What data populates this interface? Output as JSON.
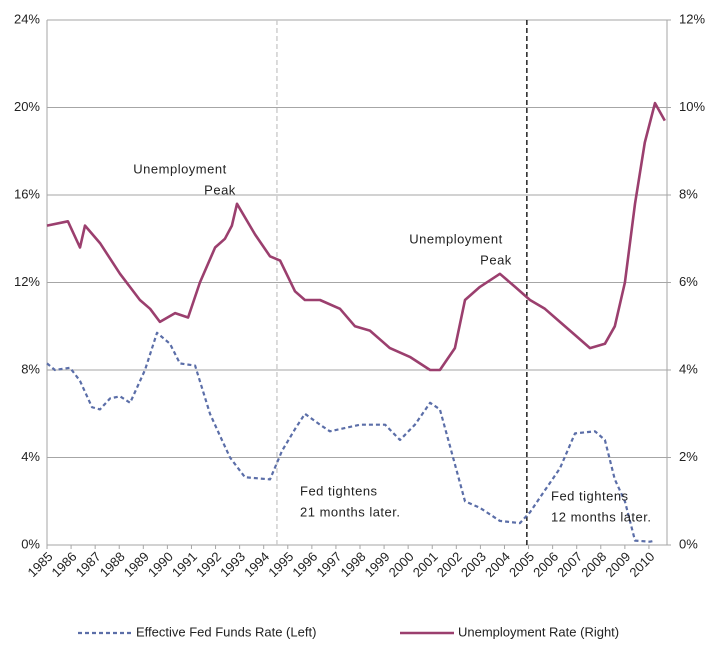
{
  "chart_data": {
    "type": "line",
    "xlim": [
      1985,
      2010.75
    ],
    "xticks": [
      1985,
      1986,
      1987,
      1988,
      1989,
      1990,
      1991,
      1992,
      1993,
      1994,
      1995,
      1996,
      1997,
      1998,
      1999,
      2000,
      2001,
      2002,
      2003,
      2004,
      2005,
      2006,
      2007,
      2008,
      2009,
      2010
    ],
    "ylim": [
      0,
      24
    ],
    "yticks": [
      {
        "value": 0,
        "label": "0%"
      },
      {
        "value": 4,
        "label": "4%"
      },
      {
        "value": 8,
        "label": "8%"
      },
      {
        "value": 12,
        "label": "12%"
      },
      {
        "value": 16,
        "label": "16%"
      },
      {
        "value": 20,
        "label": "20%"
      },
      {
        "value": 24,
        "label": "24%"
      }
    ],
    "y2lim": [
      0,
      12
    ],
    "y2ticks": [
      {
        "value": 0,
        "label": "0%"
      },
      {
        "value": 2,
        "label": "2%"
      },
      {
        "value": 4,
        "label": "4%"
      },
      {
        "value": 6,
        "label": "6%"
      },
      {
        "value": 8,
        "label": "8%"
      },
      {
        "value": 10,
        "label": "10%"
      },
      {
        "value": 12,
        "label": "12%"
      }
    ],
    "grid": true,
    "series": [
      {
        "name": "Effective Fed Funds Rate (Left)",
        "color": "#5b6ea8",
        "dashed": true,
        "x": [
          1985.0,
          1985.33,
          1985.96,
          1986.37,
          1986.87,
          1987.2,
          1987.62,
          1988.03,
          1988.45,
          1989.07,
          1989.57,
          1990.11,
          1990.52,
          1991.15,
          1991.77,
          1992.18,
          1992.6,
          1993.22,
          1994.26,
          1994.76,
          1995.3,
          1995.71,
          1996.34,
          1996.75,
          1998.0,
          1999.04,
          1999.66,
          2000.28,
          2000.91,
          2001.32,
          2001.74,
          2002.36,
          2002.98,
          2003.81,
          2004.64,
          2005.06,
          2005.68,
          2006.3,
          2006.93,
          2007.76,
          2008.17,
          2008.58,
          2009.0,
          2009.42,
          2010.04,
          2010.25
        ],
        "values": [
          8.3,
          8.0,
          8.1,
          7.5,
          6.3,
          6.2,
          6.7,
          6.8,
          6.5,
          8.0,
          9.7,
          9.2,
          8.3,
          8.2,
          6.0,
          5.0,
          4.0,
          3.1,
          3.0,
          4.3,
          5.3,
          6.0,
          5.5,
          5.2,
          5.5,
          5.5,
          4.8,
          5.5,
          6.5,
          6.2,
          4.5,
          2.0,
          1.7,
          1.1,
          1.0,
          1.5,
          2.5,
          3.5,
          5.1,
          5.2,
          4.8,
          3.0,
          2.0,
          0.2,
          0.15,
          0.2
        ]
      },
      {
        "name": "Unemployment Rate (Right)",
        "color": "#9b3f6e",
        "axis": "y2",
        "x": [
          1985.0,
          1985.87,
          1986.37,
          1986.58,
          1987.2,
          1988.03,
          1988.86,
          1989.28,
          1989.69,
          1990.32,
          1990.86,
          1991.35,
          1991.98,
          1992.39,
          1992.68,
          1992.89,
          1993.64,
          1994.26,
          1994.68,
          1995.3,
          1995.71,
          1996.34,
          1997.17,
          1997.79,
          1998.41,
          1999.24,
          2000.07,
          2000.91,
          2001.32,
          2001.94,
          2002.36,
          2002.98,
          2003.81,
          2004.44,
          2005.06,
          2005.68,
          2006.3,
          2006.93,
          2007.55,
          2008.17,
          2008.58,
          2009.0,
          2009.42,
          2009.83,
          2010.25,
          2010.66
        ],
        "values": [
          7.3,
          7.4,
          6.8,
          7.3,
          6.9,
          6.2,
          5.6,
          5.4,
          5.1,
          5.3,
          5.2,
          6.0,
          6.8,
          7.0,
          7.3,
          7.8,
          7.1,
          6.6,
          6.5,
          5.8,
          5.6,
          5.6,
          5.4,
          5.0,
          4.9,
          4.5,
          4.3,
          4.0,
          4.0,
          4.5,
          5.6,
          5.9,
          6.2,
          5.9,
          5.6,
          5.4,
          5.1,
          4.8,
          4.5,
          4.6,
          5.0,
          6.0,
          7.8,
          9.2,
          10.1,
          9.7
        ]
      }
    ],
    "vlines": [
      {
        "x": 1994.55,
        "color": "#c8c8c8"
      },
      {
        "x": 2004.93,
        "color": "#000000"
      }
    ],
    "annotations": [
      {
        "lines": [
          "Unemployment",
          "Peak"
        ]
      },
      {
        "lines": [
          "Unemployment",
          "Peak"
        ]
      },
      {
        "lines": [
          "Fed tightens",
          "21 months later."
        ]
      },
      {
        "lines": [
          "Fed tightens",
          "12 months later."
        ]
      }
    ]
  }
}
